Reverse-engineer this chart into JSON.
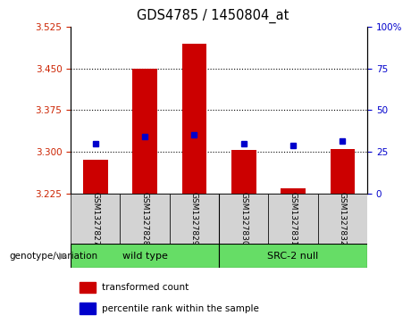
{
  "title": "GDS4785 / 1450804_at",
  "samples": [
    "GSM1327827",
    "GSM1327828",
    "GSM1327829",
    "GSM1327830",
    "GSM1327831",
    "GSM1327832"
  ],
  "red_values": [
    3.285,
    3.45,
    3.495,
    3.303,
    3.235,
    3.305
  ],
  "blue_values": [
    3.315,
    3.328,
    3.33,
    3.315,
    3.311,
    3.32
  ],
  "y_min": 3.225,
  "y_max": 3.525,
  "y_ticks_left": [
    3.225,
    3.3,
    3.375,
    3.45,
    3.525
  ],
  "y_ticks_right": [
    0,
    25,
    50,
    75,
    100
  ],
  "group_label": "genotype/variation",
  "legend_red": "transformed count",
  "legend_blue": "percentile rank within the sample",
  "bar_color": "#cc0000",
  "dot_color": "#0000cc",
  "bg_color": "#d3d3d3",
  "plot_bg": "#ffffff",
  "green_color": "#66dd66",
  "bar_width": 0.5
}
